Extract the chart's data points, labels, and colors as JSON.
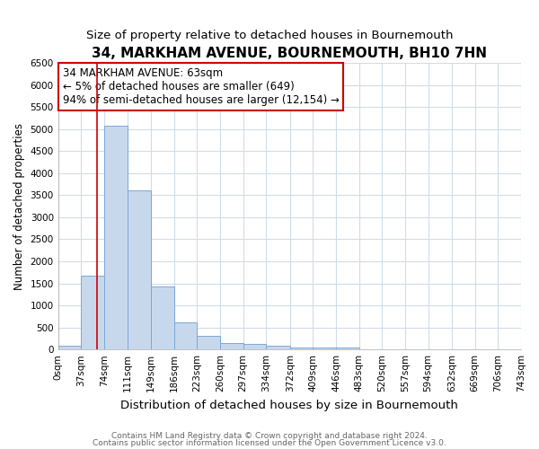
{
  "title": "34, MARKHAM AVENUE, BOURNEMOUTH, BH10 7HN",
  "subtitle": "Size of property relative to detached houses in Bournemouth",
  "xlabel": "Distribution of detached houses by size in Bournemouth",
  "ylabel": "Number of detached properties",
  "bin_edges": [
    0,
    37,
    74,
    111,
    149,
    186,
    223,
    260,
    297,
    334,
    372,
    409,
    446,
    483,
    520,
    557,
    594,
    632,
    669,
    706,
    743
  ],
  "bar_heights": [
    75,
    1670,
    5080,
    3600,
    1420,
    615,
    300,
    150,
    130,
    85,
    45,
    35,
    50,
    0,
    0,
    0,
    0,
    0,
    0,
    0
  ],
  "bar_color": "#c8d8ec",
  "bar_edge_color": "#7aa8d4",
  "property_size": 63,
  "property_line_color": "#cc0000",
  "annotation_text": "34 MARKHAM AVENUE: 63sqm\n← 5% of detached houses are smaller (649)\n94% of semi-detached houses are larger (12,154) →",
  "annotation_box_color": "#ffffff",
  "annotation_box_edge_color": "#cc0000",
  "ylim": [
    0,
    6500
  ],
  "yticks": [
    0,
    500,
    1000,
    1500,
    2000,
    2500,
    3000,
    3500,
    4000,
    4500,
    5000,
    5500,
    6000,
    6500
  ],
  "footnote1": "Contains HM Land Registry data © Crown copyright and database right 2024.",
  "footnote2": "Contains public sector information licensed under the Open Government Licence v3.0.",
  "background_color": "#ffffff",
  "plot_bg_color": "#ffffff",
  "grid_color": "#d0dce8",
  "title_fontsize": 11,
  "subtitle_fontsize": 9.5,
  "xlabel_fontsize": 9.5,
  "ylabel_fontsize": 8.5,
  "tick_fontsize": 7.5,
  "annotation_fontsize": 8.5,
  "footnote_fontsize": 6.5
}
